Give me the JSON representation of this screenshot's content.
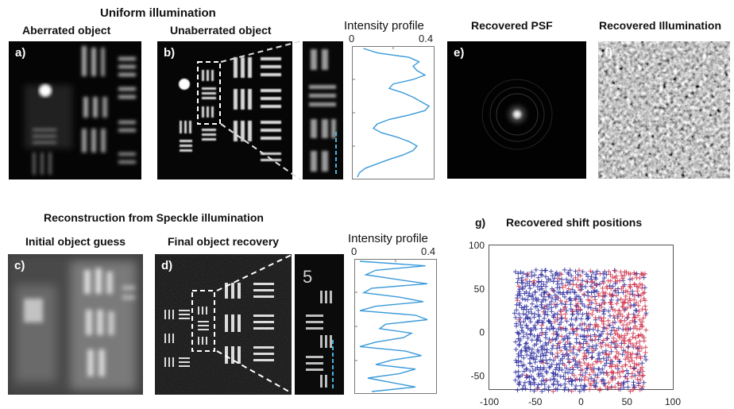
{
  "headers": {
    "uniform": "Uniform illumination",
    "aberrated": "Aberrated object",
    "unaberrated": "Unaberrated object",
    "intensity_top": "Intensity profile",
    "psf": "Recovered PSF",
    "illum": "Recovered Illumination",
    "speckle": "Reconstruction from Speckle illumination",
    "initial": "Initial object guess",
    "final": "Final object recovery",
    "intensity_bottom": "Intensity profile",
    "g_title": "Recovered shift positions"
  },
  "panel_labels": {
    "a": "a)",
    "b": "b)",
    "c": "c)",
    "d": "d)",
    "e": "e)",
    "f": "f)",
    "g": "g)"
  },
  "profile_ticks": {
    "top_min": "0",
    "top_max": "0.4",
    "bottom_min": "0",
    "bottom_max": "0.4"
  },
  "zoom_digit": "5",
  "colors": {
    "profile_line": "#3a9ad9",
    "marker_blue": "#2a2a9e",
    "marker_red": "#d0304a"
  },
  "chart_data": [
    {
      "type": "line",
      "series": [
        {
          "values": [
            0.05,
            0.12,
            0.28,
            0.33,
            0.3,
            0.32,
            0.36,
            0.3,
            0.2,
            0.18,
            0.25,
            0.3,
            0.34,
            0.38,
            0.36,
            0.28,
            0.18,
            0.12,
            0.1,
            0.14,
            0.22,
            0.28,
            0.32,
            0.3,
            0.25,
            0.18,
            0.12,
            0.06,
            0.03,
            0.02
          ]
        }
      ],
      "xlim": [
        0,
        0.4
      ]
    },
    {
      "type": "line",
      "series": [
        {
          "values": [
            0.02,
            0.35,
            0.1,
            0.05,
            0.2,
            0.36,
            0.08,
            0.04,
            0.22,
            0.34,
            0.1,
            0.02,
            0.3,
            0.36,
            0.15,
            0.12,
            0.28,
            0.24,
            0.1,
            0.02,
            0.25,
            0.33,
            0.18,
            0.1,
            0.3,
            0.22,
            0.06,
            0.18,
            0.3,
            0.08
          ]
        }
      ],
      "xlim": [
        0,
        0.4
      ]
    },
    {
      "type": "scatter",
      "title": "Recovered shift positions",
      "xlim": [
        -100,
        100
      ],
      "ylim": [
        -65,
        100
      ],
      "xticks": [
        "-100",
        "-50",
        "0",
        "50",
        "100"
      ],
      "yticks": [
        "100",
        "50",
        "0",
        "-50"
      ],
      "point_region": {
        "x": [
          -70,
          70
        ],
        "y": [
          -65,
          70
        ]
      }
    }
  ]
}
